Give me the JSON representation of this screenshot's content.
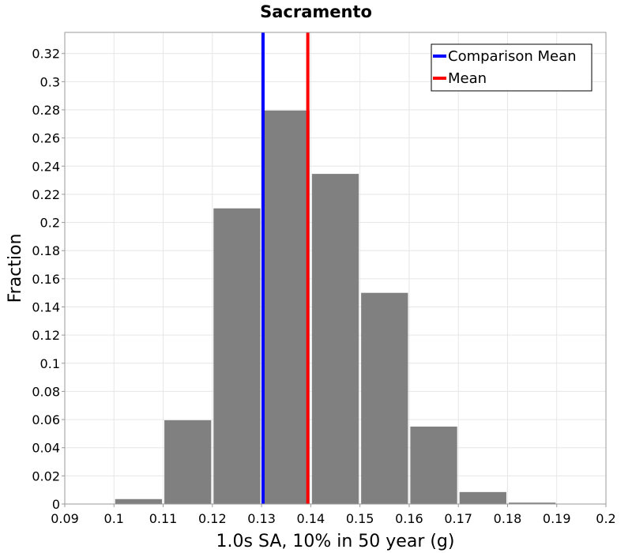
{
  "chart_data": {
    "type": "bar",
    "title": "Sacramento",
    "xlabel": "1.0s SA, 10% in 50 year (g)",
    "ylabel": "Fraction",
    "xlim": [
      0.09,
      0.2
    ],
    "ylim": [
      0,
      0.335
    ],
    "x_ticks": [
      0.09,
      0.1,
      0.11,
      0.12,
      0.13,
      0.14,
      0.15,
      0.16,
      0.17,
      0.18,
      0.19,
      0.2
    ],
    "x_tick_labels": [
      "0.09",
      "0.1",
      "0.11",
      "0.12",
      "0.13",
      "0.14",
      "0.15",
      "0.16",
      "0.17",
      "0.18",
      "0.19",
      "0.2"
    ],
    "y_ticks": [
      0,
      0.02,
      0.04,
      0.06,
      0.08,
      0.1,
      0.12,
      0.14,
      0.16,
      0.18,
      0.2,
      0.22,
      0.24,
      0.26,
      0.28,
      0.3,
      0.32
    ],
    "y_tick_labels": [
      "0",
      "0.02",
      "0.04",
      "0.06",
      "0.08",
      "0.1",
      "0.12",
      "0.14",
      "0.16",
      "0.18",
      "0.2",
      "0.22",
      "0.24",
      "0.26",
      "0.28",
      "0.3",
      "0.32"
    ],
    "bin_width": 0.01,
    "bins": [
      {
        "x": 0.105,
        "value": 0.0035
      },
      {
        "x": 0.115,
        "value": 0.0595
      },
      {
        "x": 0.125,
        "value": 0.21
      },
      {
        "x": 0.135,
        "value": 0.2795
      },
      {
        "x": 0.145,
        "value": 0.2345
      },
      {
        "x": 0.155,
        "value": 0.15
      },
      {
        "x": 0.165,
        "value": 0.055
      },
      {
        "x": 0.175,
        "value": 0.0085
      },
      {
        "x": 0.185,
        "value": 0.001
      }
    ],
    "bar_color": "#808080",
    "vlines": [
      {
        "name": "Comparison Mean",
        "x": 0.1303,
        "color": "#0000ff"
      },
      {
        "name": "Mean",
        "x": 0.1394,
        "color": "#ff0000"
      }
    ],
    "legend": {
      "position": "top-right",
      "entries": [
        {
          "label": "Comparison Mean",
          "color": "#0000ff"
        },
        {
          "label": "Mean",
          "color": "#ff0000"
        }
      ]
    },
    "grid": true
  }
}
